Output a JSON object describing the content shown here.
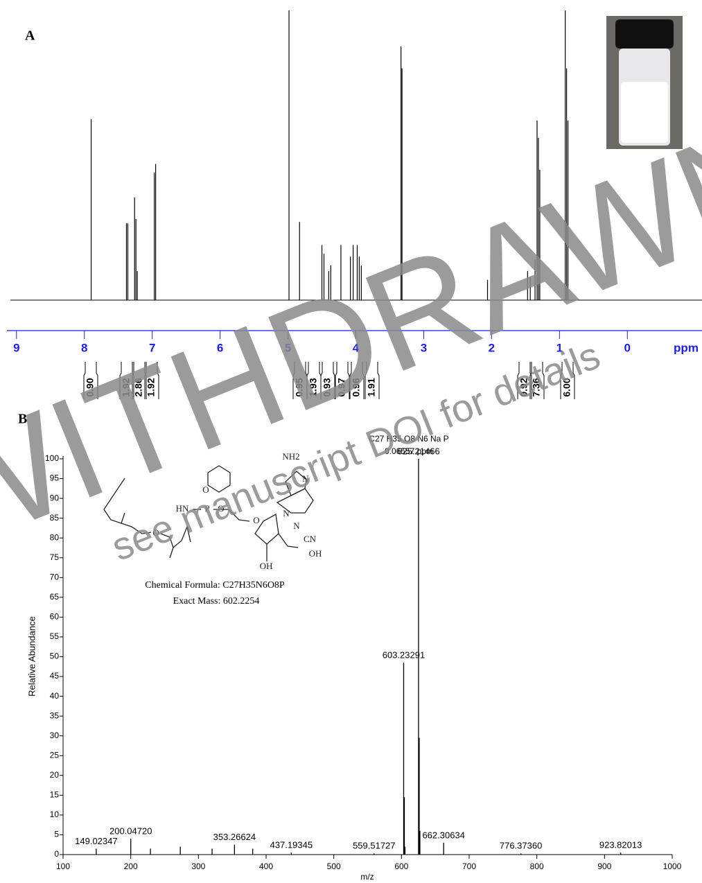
{
  "chart_data": [
    {
      "type": "stem",
      "panel": "A",
      "color": "#000000",
      "x": [
        7.9,
        7.38,
        7.36,
        7.26,
        7.24,
        7.22,
        6.97,
        6.95,
        4.985,
        4.83,
        4.5,
        4.47,
        4.4,
        4.37,
        4.22,
        4.08,
        4.04,
        3.98,
        3.95,
        3.92,
        3.335,
        3.32,
        2.06,
        1.47,
        1.43,
        1.36,
        1.33,
        1.31,
        1.29,
        0.915,
        0.895,
        0.875
      ],
      "values": [
        62.4,
        26.5,
        26.5,
        35.4,
        28,
        10,
        44,
        47,
        100,
        27,
        19,
        16,
        10,
        12,
        19,
        15,
        19,
        19,
        15,
        12,
        87.6,
        80,
        7,
        10,
        8,
        14,
        62,
        56,
        45,
        100,
        80,
        62
      ],
      "xlim": [
        9.09,
        -1.1
      ],
      "ylim": [
        0,
        100
      ],
      "xticks": [
        9,
        8,
        7,
        6,
        5,
        4,
        3,
        2,
        1,
        0
      ],
      "x_label": "ppm",
      "integrals": [
        "0.90",
        "1.92",
        "2.86",
        "1.92",
        "0.95",
        "1.93",
        "0.93",
        "0.97",
        "0.96",
        "1.91",
        "0.92",
        "7.36",
        "6.00"
      ]
    },
    {
      "type": "stem",
      "panel": "B",
      "color": "#000000",
      "x": [
        149.02347,
        200.0472,
        229.1,
        273.2,
        320.2,
        353.26624,
        380.2,
        437.19345,
        559.51727,
        603.23291,
        604.24,
        605.24,
        625.21466,
        626.22,
        627.22,
        662.30634,
        776.3736,
        923.82013
      ],
      "values": [
        1.5,
        4,
        1.5,
        2,
        1.5,
        2.5,
        1.5,
        0.5,
        0.3,
        48.5,
        14.5,
        2,
        100,
        29.5,
        6,
        3,
        0.3,
        0.5
      ],
      "x_labels": [
        "149.02347",
        "200.04720",
        null,
        null,
        null,
        "353.26624",
        null,
        "437.19345",
        "559.51727",
        "603.23291",
        null,
        null,
        "625.21466",
        null,
        null,
        "662.30634",
        "776.37360",
        "923.82013"
      ],
      "annotation": [
        "C27 H35 O8 N6 Na P",
        "0.06557 ppm"
      ],
      "xlim": [
        100,
        1000
      ],
      "ylim": [
        0,
        100
      ],
      "xticks": [
        100,
        200,
        300,
        400,
        500,
        600,
        700,
        800,
        900,
        1000
      ],
      "yticks": [
        0,
        5,
        10,
        15,
        20,
        25,
        30,
        35,
        40,
        45,
        50,
        55,
        60,
        65,
        70,
        75,
        80,
        85,
        90,
        95,
        100
      ],
      "x_label": "m/z",
      "y_label": "Relative Abundance",
      "structure": {
        "labels": [
          "NH2",
          "N",
          "N",
          "N",
          "HN",
          "P",
          "O",
          "O",
          "O",
          "O",
          "CN",
          "OH",
          "OH"
        ],
        "formula": "Chemical Formula: C27H35N6O8P",
        "exact_mass": "Exact Mass: 602.2254"
      }
    }
  ],
  "watermark": {
    "title": "WITHDRAWN",
    "subtitle": "see manuscript DOI for details"
  }
}
